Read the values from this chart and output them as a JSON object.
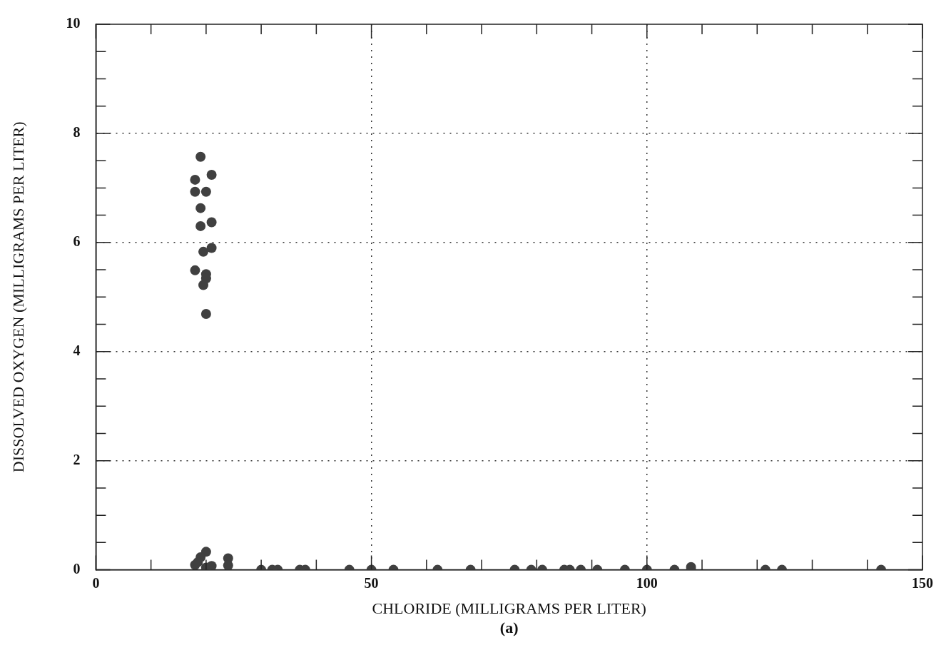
{
  "chart_data": {
    "type": "scatter",
    "xlabel": "CHLORIDE (MILLIGRAMS PER LITER)",
    "ylabel": "DISSOLVED OXYGEN (MILLIGRAMS PER LITER)",
    "annotations": [
      "(a)"
    ],
    "xlim": [
      0,
      150
    ],
    "ylim": [
      0,
      10
    ],
    "xticks": [
      0,
      {
        "value": 10,
        "label": null
      },
      {
        "value": 20,
        "label": null
      },
      {
        "value": 30,
        "label": null
      },
      {
        "value": 40,
        "label": null
      },
      50,
      {
        "value": 60,
        "label": null
      },
      {
        "value": 70,
        "label": null
      },
      {
        "value": 80,
        "label": null
      },
      {
        "value": 90,
        "label": null
      },
      100,
      {
        "value": 110,
        "label": null
      },
      {
        "value": 120,
        "label": null
      },
      {
        "value": 130,
        "label": null
      },
      {
        "value": 140,
        "label": null
      },
      150
    ],
    "yticks": [
      0,
      {
        "value": 0.5,
        "label": null
      },
      {
        "value": 1,
        "label": null
      },
      {
        "value": 1.5,
        "label": null
      },
      2,
      {
        "value": 2.5,
        "label": null
      },
      {
        "value": 3,
        "label": null
      },
      {
        "value": 3.5,
        "label": null
      },
      4,
      {
        "value": 4.5,
        "label": null
      },
      {
        "value": 5,
        "label": null
      },
      {
        "value": 5.5,
        "label": null
      },
      6,
      {
        "value": 6.5,
        "label": null
      },
      {
        "value": 7,
        "label": null
      },
      {
        "value": 7.5,
        "label": null
      },
      8,
      {
        "value": 8.5,
        "label": null
      },
      {
        "value": 9,
        "label": null
      },
      {
        "value": 9.5,
        "label": null
      },
      10
    ],
    "grid": true,
    "marker": "circle",
    "legend": false,
    "series": [
      {
        "color": "#404040",
        "x": [
          19,
          21,
          18,
          18,
          20,
          19,
          19,
          21,
          19.5,
          21,
          18,
          20,
          20,
          19.5,
          20,
          20,
          19,
          18,
          20,
          21,
          24,
          24,
          18.5,
          30,
          32,
          33,
          37,
          38,
          46,
          50,
          54,
          62,
          68,
          76,
          79,
          81,
          85,
          86,
          88,
          91,
          96,
          100,
          105,
          108,
          108,
          121.5,
          124.5,
          142.5
        ],
        "values": [
          7.57,
          7.24,
          7.15,
          6.93,
          6.93,
          6.63,
          6.3,
          6.37,
          5.83,
          5.9,
          5.49,
          5.42,
          5.34,
          5.22,
          4.69,
          0.33,
          0.23,
          0.09,
          0.04,
          0.07,
          0.21,
          0.08,
          0.14,
          0,
          0,
          0,
          0,
          0,
          0,
          0,
          0,
          0,
          0,
          0,
          0,
          0,
          0,
          0,
          0,
          0,
          0,
          0,
          0,
          0,
          0.05,
          0,
          0,
          0
        ]
      }
    ]
  }
}
